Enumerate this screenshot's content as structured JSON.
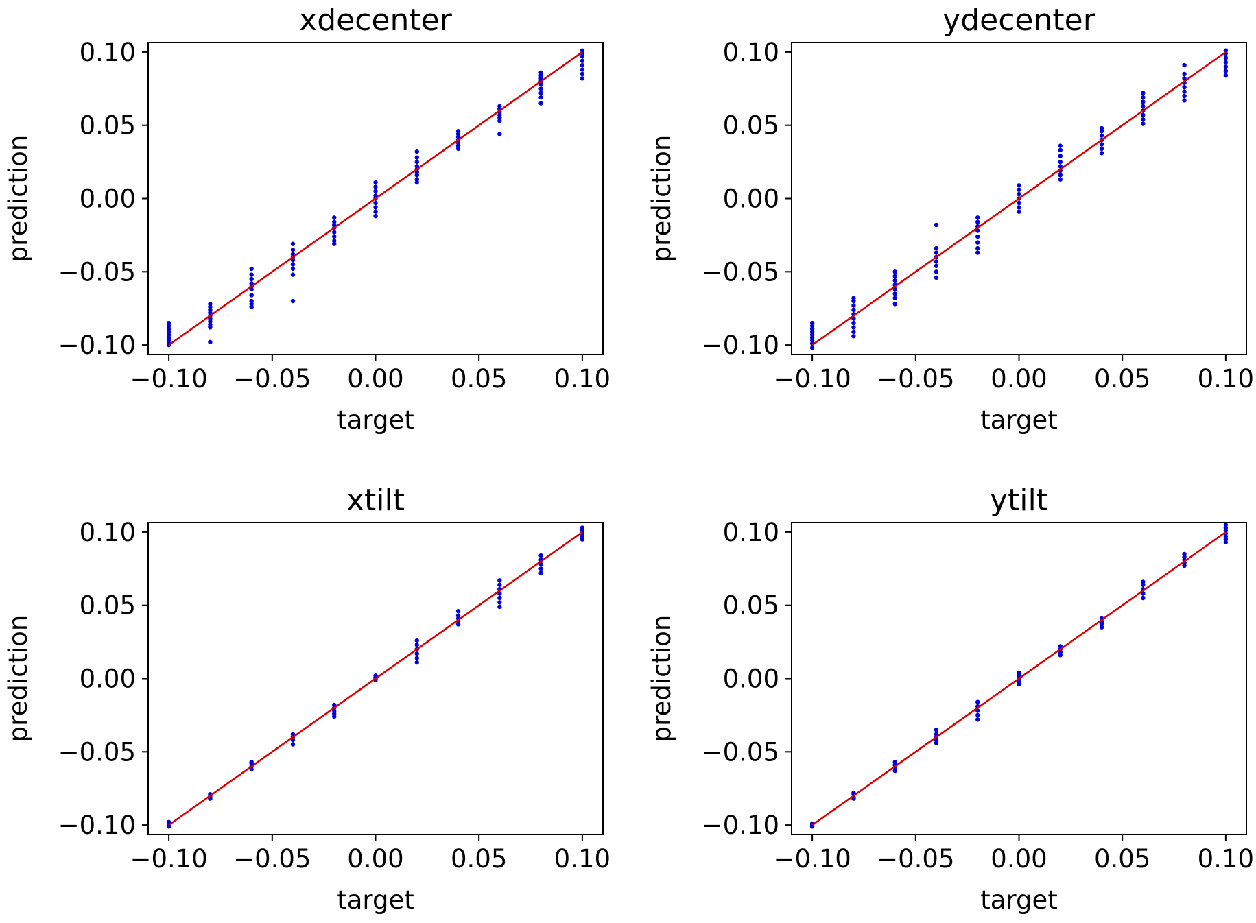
{
  "figure": {
    "background": "#ffffff",
    "point_color": "#0000dd",
    "line_color": "#dd0000"
  },
  "chart_data": [
    {
      "type": "scatter",
      "title": "xdecenter",
      "xlabel": "target",
      "ylabel": "prediction",
      "xlim": [
        -0.11,
        0.11
      ],
      "ylim": [
        -0.1065,
        0.1065
      ],
      "xticks": [
        -0.1,
        -0.05,
        0.0,
        0.05,
        0.1
      ],
      "xtick_labels": [
        "−0.10",
        "−0.05",
        "0.00",
        "0.05",
        "0.10"
      ],
      "yticks": [
        -0.1,
        -0.05,
        0.0,
        0.05,
        0.1
      ],
      "ytick_labels": [
        "−0.10",
        "−0.05",
        "0.00",
        "0.05",
        "0.10"
      ],
      "grid": false,
      "reference_line": {
        "x": [
          -0.1,
          0.1
        ],
        "y": [
          -0.1,
          0.1
        ]
      },
      "points": [
        {
          "x": -0.1,
          "y": [
            -0.1,
            -0.099,
            -0.097,
            -0.095,
            -0.093,
            -0.091,
            -0.089,
            -0.087,
            -0.085
          ]
        },
        {
          "x": -0.08,
          "y": [
            -0.098,
            -0.088,
            -0.086,
            -0.084,
            -0.082,
            -0.08,
            -0.078,
            -0.076,
            -0.074,
            -0.072
          ]
        },
        {
          "x": -0.06,
          "y": [
            -0.074,
            -0.072,
            -0.07,
            -0.066,
            -0.062,
            -0.06,
            -0.058,
            -0.055,
            -0.052,
            -0.048
          ]
        },
        {
          "x": -0.04,
          "y": [
            -0.07,
            -0.052,
            -0.048,
            -0.045,
            -0.042,
            -0.04,
            -0.038,
            -0.035,
            -0.031
          ]
        },
        {
          "x": -0.02,
          "y": [
            -0.031,
            -0.029,
            -0.026,
            -0.023,
            -0.02,
            -0.018,
            -0.016,
            -0.013
          ]
        },
        {
          "x": 0.0,
          "y": [
            -0.012,
            -0.009,
            -0.006,
            -0.003,
            0.0,
            0.002,
            0.005,
            0.008,
            0.011
          ]
        },
        {
          "x": 0.02,
          "y": [
            0.011,
            0.013,
            0.016,
            0.018,
            0.02,
            0.022,
            0.025,
            0.028,
            0.032
          ]
        },
        {
          "x": 0.04,
          "y": [
            0.034,
            0.036,
            0.038,
            0.04,
            0.042,
            0.044,
            0.046
          ]
        },
        {
          "x": 0.06,
          "y": [
            0.044,
            0.053,
            0.055,
            0.057,
            0.059,
            0.061,
            0.063
          ]
        },
        {
          "x": 0.08,
          "y": [
            0.065,
            0.069,
            0.072,
            0.075,
            0.078,
            0.08,
            0.082,
            0.084,
            0.086
          ]
        },
        {
          "x": 0.1,
          "y": [
            0.082,
            0.085,
            0.088,
            0.091,
            0.094,
            0.097,
            0.099,
            0.101
          ]
        }
      ]
    },
    {
      "type": "scatter",
      "title": "ydecenter",
      "xlabel": "target",
      "ylabel": "prediction",
      "xlim": [
        -0.11,
        0.11
      ],
      "ylim": [
        -0.1065,
        0.1065
      ],
      "xticks": [
        -0.1,
        -0.05,
        0.0,
        0.05,
        0.1
      ],
      "xtick_labels": [
        "−0.10",
        "−0.05",
        "0.00",
        "0.05",
        "0.10"
      ],
      "yticks": [
        -0.1,
        -0.05,
        0.0,
        0.05,
        0.1
      ],
      "ytick_labels": [
        "−0.10",
        "−0.05",
        "0.00",
        "0.05",
        "0.10"
      ],
      "grid": false,
      "reference_line": {
        "x": [
          -0.1,
          0.1
        ],
        "y": [
          -0.1,
          0.1
        ]
      },
      "points": [
        {
          "x": -0.1,
          "y": [
            -0.102,
            -0.099,
            -0.097,
            -0.095,
            -0.093,
            -0.091,
            -0.089,
            -0.087,
            -0.085
          ]
        },
        {
          "x": -0.08,
          "y": [
            -0.094,
            -0.091,
            -0.088,
            -0.085,
            -0.082,
            -0.079,
            -0.076,
            -0.073,
            -0.07,
            -0.068
          ]
        },
        {
          "x": -0.06,
          "y": [
            -0.072,
            -0.068,
            -0.065,
            -0.062,
            -0.059,
            -0.056,
            -0.053,
            -0.05
          ]
        },
        {
          "x": -0.04,
          "y": [
            -0.054,
            -0.05,
            -0.046,
            -0.043,
            -0.04,
            -0.037,
            -0.034,
            -0.018
          ]
        },
        {
          "x": -0.02,
          "y": [
            -0.037,
            -0.034,
            -0.03,
            -0.026,
            -0.022,
            -0.019,
            -0.016,
            -0.013
          ]
        },
        {
          "x": 0.0,
          "y": [
            -0.009,
            -0.006,
            -0.003,
            0.0,
            0.003,
            0.006,
            0.009
          ]
        },
        {
          "x": 0.02,
          "y": [
            0.013,
            0.016,
            0.019,
            0.022,
            0.025,
            0.029,
            0.033,
            0.036
          ]
        },
        {
          "x": 0.04,
          "y": [
            0.031,
            0.034,
            0.037,
            0.04,
            0.043,
            0.046,
            0.048
          ]
        },
        {
          "x": 0.06,
          "y": [
            0.051,
            0.054,
            0.057,
            0.06,
            0.063,
            0.066,
            0.069,
            0.072
          ]
        },
        {
          "x": 0.08,
          "y": [
            0.067,
            0.07,
            0.073,
            0.076,
            0.079,
            0.082,
            0.085,
            0.091
          ]
        },
        {
          "x": 0.1,
          "y": [
            0.084,
            0.087,
            0.09,
            0.093,
            0.096,
            0.099,
            0.101
          ]
        }
      ]
    },
    {
      "type": "scatter",
      "title": "xtilt",
      "xlabel": "target",
      "ylabel": "prediction",
      "xlim": [
        -0.11,
        0.11
      ],
      "ylim": [
        -0.1065,
        0.1065
      ],
      "xticks": [
        -0.1,
        -0.05,
        0.0,
        0.05,
        0.1
      ],
      "xtick_labels": [
        "−0.10",
        "−0.05",
        "0.00",
        "0.05",
        "0.10"
      ],
      "yticks": [
        -0.1,
        -0.05,
        0.0,
        0.05,
        0.1
      ],
      "ytick_labels": [
        "−0.10",
        "−0.05",
        "0.00",
        "0.05",
        "0.10"
      ],
      "grid": false,
      "reference_line": {
        "x": [
          -0.1,
          0.1
        ],
        "y": [
          -0.1,
          0.1
        ]
      },
      "points": [
        {
          "x": -0.1,
          "y": [
            -0.101,
            -0.1,
            -0.099,
            -0.098
          ]
        },
        {
          "x": -0.08,
          "y": [
            -0.082,
            -0.081,
            -0.08,
            -0.079
          ]
        },
        {
          "x": -0.06,
          "y": [
            -0.062,
            -0.06,
            -0.058,
            -0.057
          ]
        },
        {
          "x": -0.04,
          "y": [
            -0.045,
            -0.042,
            -0.04,
            -0.038
          ]
        },
        {
          "x": -0.02,
          "y": [
            -0.026,
            -0.024,
            -0.022,
            -0.02,
            -0.018
          ]
        },
        {
          "x": 0.0,
          "y": [
            -0.001,
            0.0,
            0.001,
            0.002
          ]
        },
        {
          "x": 0.02,
          "y": [
            0.011,
            0.014,
            0.017,
            0.02,
            0.023,
            0.026
          ]
        },
        {
          "x": 0.04,
          "y": [
            0.037,
            0.039,
            0.041,
            0.043,
            0.046
          ]
        },
        {
          "x": 0.06,
          "y": [
            0.049,
            0.052,
            0.055,
            0.058,
            0.061,
            0.064,
            0.067
          ]
        },
        {
          "x": 0.08,
          "y": [
            0.072,
            0.075,
            0.078,
            0.081,
            0.084
          ]
        },
        {
          "x": 0.1,
          "y": [
            0.095,
            0.097,
            0.099,
            0.101,
            0.103
          ]
        }
      ]
    },
    {
      "type": "scatter",
      "title": "ytilt",
      "xlabel": "target",
      "ylabel": "prediction",
      "xlim": [
        -0.11,
        0.11
      ],
      "ylim": [
        -0.1065,
        0.1065
      ],
      "xticks": [
        -0.1,
        -0.05,
        0.0,
        0.05,
        0.1
      ],
      "xtick_labels": [
        "−0.10",
        "−0.05",
        "0.00",
        "0.05",
        "0.10"
      ],
      "yticks": [
        -0.1,
        -0.05,
        0.0,
        0.05,
        0.1
      ],
      "ytick_labels": [
        "−0.10",
        "−0.05",
        "0.00",
        "0.05",
        "0.10"
      ],
      "grid": false,
      "reference_line": {
        "x": [
          -0.1,
          0.1
        ],
        "y": [
          -0.1,
          0.1
        ]
      },
      "points": [
        {
          "x": -0.1,
          "y": [
            -0.101,
            -0.1,
            -0.099
          ]
        },
        {
          "x": -0.08,
          "y": [
            -0.082,
            -0.081,
            -0.079,
            -0.078
          ]
        },
        {
          "x": -0.06,
          "y": [
            -0.063,
            -0.061,
            -0.059,
            -0.057
          ]
        },
        {
          "x": -0.04,
          "y": [
            -0.044,
            -0.042,
            -0.04,
            -0.038,
            -0.035
          ]
        },
        {
          "x": -0.02,
          "y": [
            -0.028,
            -0.025,
            -0.022,
            -0.019,
            -0.016
          ]
        },
        {
          "x": 0.0,
          "y": [
            -0.004,
            -0.002,
            0.0,
            0.002,
            0.004
          ]
        },
        {
          "x": 0.02,
          "y": [
            0.016,
            0.018,
            0.02,
            0.022
          ]
        },
        {
          "x": 0.04,
          "y": [
            0.035,
            0.037,
            0.039,
            0.041
          ]
        },
        {
          "x": 0.06,
          "y": [
            0.055,
            0.058,
            0.061,
            0.064,
            0.066
          ]
        },
        {
          "x": 0.08,
          "y": [
            0.077,
            0.079,
            0.081,
            0.083,
            0.085
          ]
        },
        {
          "x": 0.1,
          "y": [
            0.093,
            0.095,
            0.097,
            0.099,
            0.101,
            0.103,
            0.105
          ]
        }
      ]
    }
  ]
}
